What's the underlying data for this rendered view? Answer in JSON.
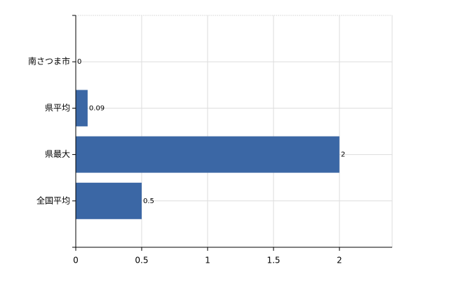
{
  "chart_data": {
    "type": "bar",
    "orientation": "horizontal",
    "categories": [
      "南さつま市",
      "県平均",
      "県最大",
      "全国平均"
    ],
    "values": [
      0,
      0.09,
      2,
      0.5
    ],
    "color": "#3b67a5",
    "xlim": [
      0,
      2.4
    ],
    "xticks": [
      0,
      0.5,
      1,
      1.5,
      2
    ],
    "grid": true
  }
}
